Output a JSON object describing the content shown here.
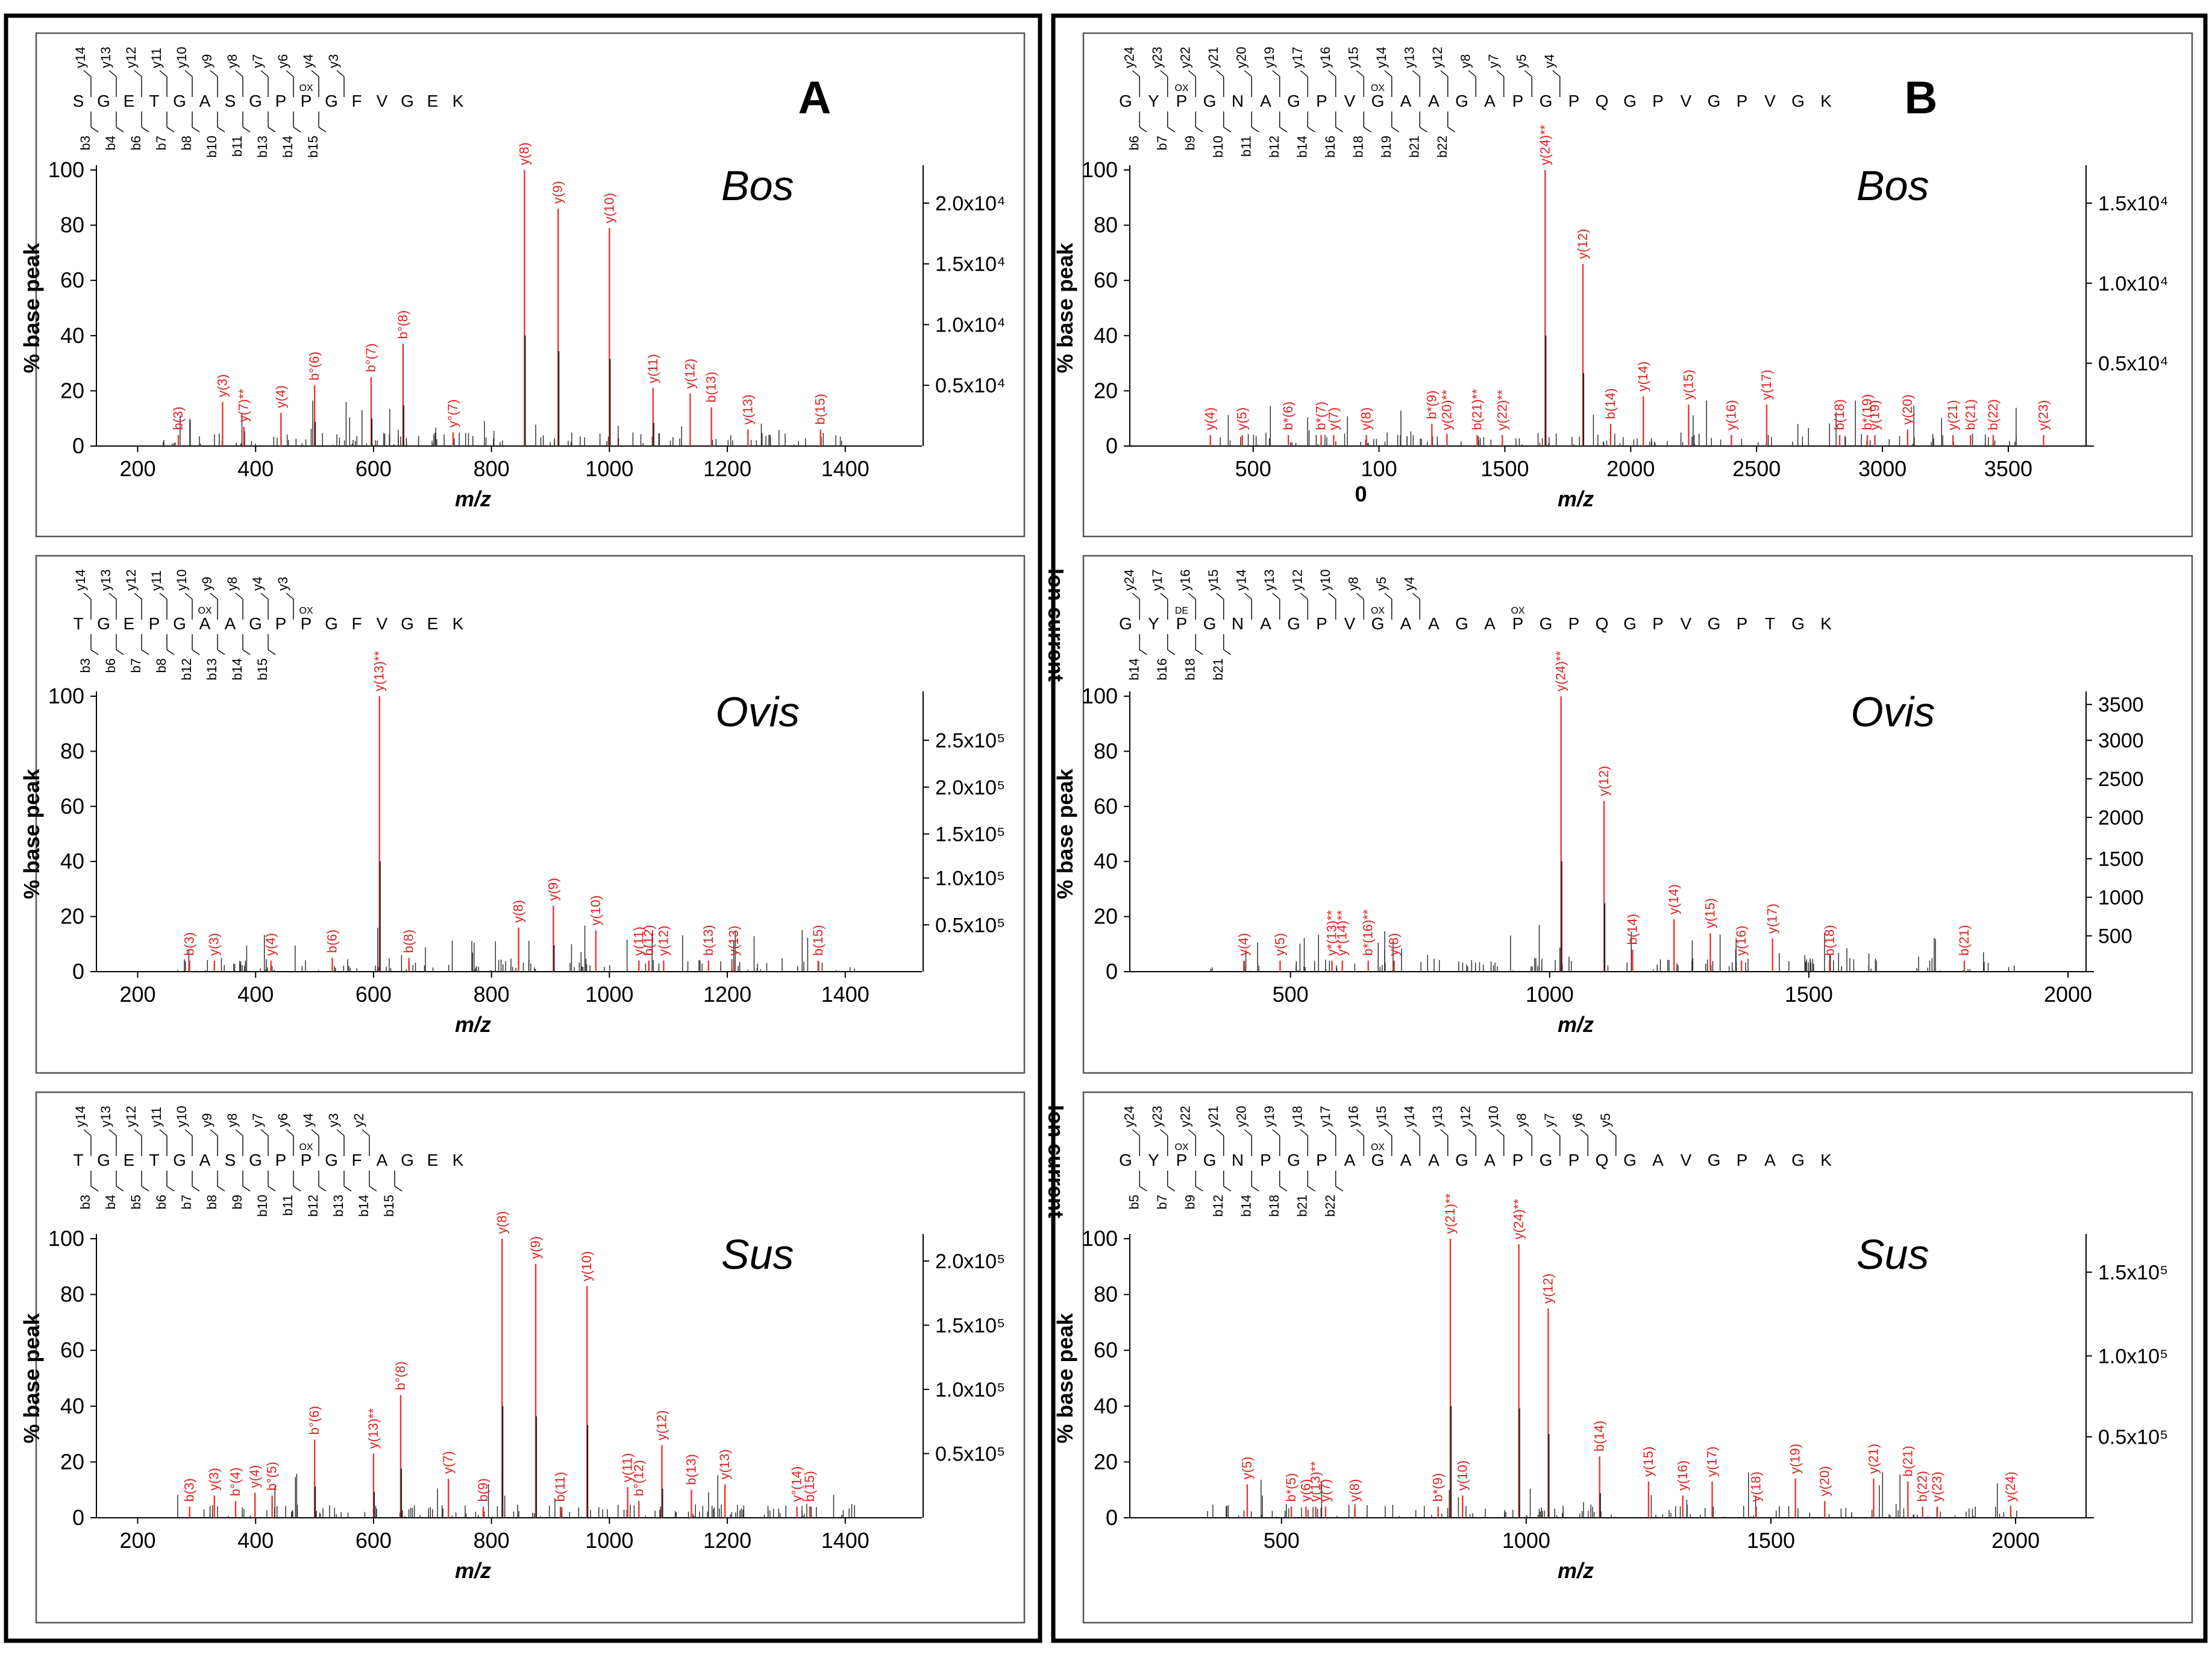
{
  "panels": {
    "A": "A",
    "B": "B"
  },
  "chart_data": [
    {
      "type": "bar",
      "column": "A",
      "row": 0,
      "species": "Bos",
      "ylabel": "% base peak",
      "xlabel": "m/z",
      "right_label": "",
      "xlim": [
        130,
        1530
      ],
      "ylim": [
        0,
        100
      ],
      "xticks": [
        {
          "v": 200,
          "t": "200"
        },
        {
          "v": 400,
          "t": "400"
        },
        {
          "v": 600,
          "t": "600"
        },
        {
          "v": 800,
          "t": "800"
        },
        {
          "v": 1000,
          "t": "1000"
        },
        {
          "v": 1200,
          "t": "1200"
        },
        {
          "v": 1400,
          "t": "1400"
        }
      ],
      "yticks": [
        0,
        20,
        40,
        60,
        80,
        100
      ],
      "rticks": [
        {
          "v": 88,
          "t": "2.0x10⁴"
        },
        {
          "v": 66,
          "t": "1.5x10⁴"
        },
        {
          "v": 44,
          "t": "1.0x10⁴"
        },
        {
          "v": 22,
          "t": "0.5x10⁴"
        }
      ],
      "sequence": "S G E T G A S G P P G F V G E K",
      "seq_top": [
        "y14",
        "y13",
        "y12",
        "y11",
        "y10",
        "y9",
        "y8",
        "y7",
        "y6",
        "y4",
        "y3"
      ],
      "seq_bottom": [
        "b3",
        "b4",
        "b6",
        "b7",
        "b8",
        "b10",
        "b11",
        "b13",
        "b14",
        "b15"
      ],
      "mods": [
        "OX"
      ],
      "peaks": [
        {
          "x": 269,
          "y": 4,
          "label": "b(3)"
        },
        {
          "x": 344,
          "y": 16,
          "label": "y(3)"
        },
        {
          "x": 380,
          "y": 7,
          "label": "y(7)**"
        },
        {
          "x": 443,
          "y": 12,
          "label": "y(4)"
        },
        {
          "x": 500,
          "y": 22,
          "label": "b°(6)"
        },
        {
          "x": 596,
          "y": 25,
          "label": "b°(7)"
        },
        {
          "x": 650,
          "y": 37,
          "label": "b°(8)"
        },
        {
          "x": 735,
          "y": 5,
          "label": "y°(7)"
        },
        {
          "x": 856,
          "y": 100,
          "label": "y(8)"
        },
        {
          "x": 913,
          "y": 86,
          "label": "y(9)"
        },
        {
          "x": 1000,
          "y": 79,
          "label": "y(10)"
        },
        {
          "x": 1074,
          "y": 21,
          "label": "y(11)"
        },
        {
          "x": 1137,
          "y": 19,
          "label": "y(12)"
        },
        {
          "x": 1173,
          "y": 14,
          "label": "b(13)"
        },
        {
          "x": 1235,
          "y": 6,
          "label": "y(13)"
        },
        {
          "x": 1358,
          "y": 6,
          "label": "b(15)"
        }
      ]
    },
    {
      "type": "bar",
      "column": "A",
      "row": 1,
      "species": "Ovis",
      "ylabel": "% base peak",
      "xlabel": "m/z",
      "right_label": "Ion current",
      "xlim": [
        130,
        1530
      ],
      "ylim": [
        0,
        100
      ],
      "xticks": [
        {
          "v": 200,
          "t": "200"
        },
        {
          "v": 400,
          "t": "400"
        },
        {
          "v": 600,
          "t": "600"
        },
        {
          "v": 800,
          "t": "800"
        },
        {
          "v": 1000,
          "t": "1000"
        },
        {
          "v": 1200,
          "t": "1200"
        },
        {
          "v": 1400,
          "t": "1400"
        }
      ],
      "yticks": [
        0,
        20,
        40,
        60,
        80,
        100
      ],
      "rticks": [
        {
          "v": 84,
          "t": "2.5x10⁵"
        },
        {
          "v": 67,
          "t": "2.0x10⁵"
        },
        {
          "v": 50,
          "t": "1.5x10⁵"
        },
        {
          "v": 34,
          "t": "1.0x10⁵"
        },
        {
          "v": 17,
          "t": "0.5x10⁵"
        }
      ],
      "sequence": "T G E P G A A G P P G F V G E K",
      "seq_top": [
        "y14",
        "y13",
        "y12",
        "y11",
        "y10",
        "y9",
        "y8",
        "y4",
        "y3"
      ],
      "seq_bottom": [
        "b3",
        "b6",
        "b7",
        "b8",
        "b12",
        "b13",
        "b14",
        "b15"
      ],
      "mods": [
        "OX",
        "OX"
      ],
      "peaks": [
        {
          "x": 288,
          "y": 4,
          "label": "b(3)"
        },
        {
          "x": 330,
          "y": 4,
          "label": "y(3)"
        },
        {
          "x": 426,
          "y": 4,
          "label": "y(4)"
        },
        {
          "x": 530,
          "y": 5,
          "label": "b(6)"
        },
        {
          "x": 610,
          "y": 100,
          "label": "y(13)**"
        },
        {
          "x": 660,
          "y": 5,
          "label": "b(8)"
        },
        {
          "x": 846,
          "y": 16,
          "label": "y(8)"
        },
        {
          "x": 905,
          "y": 24,
          "label": "y(9)"
        },
        {
          "x": 977,
          "y": 15,
          "label": "y(10)"
        },
        {
          "x": 1050,
          "y": 4,
          "label": "y(11)"
        },
        {
          "x": 1067,
          "y": 4,
          "label": "b(12)"
        },
        {
          "x": 1092,
          "y": 4,
          "label": "y(12)"
        },
        {
          "x": 1168,
          "y": 4,
          "label": "b(13)"
        },
        {
          "x": 1211,
          "y": 4,
          "label": "y(13)"
        },
        {
          "x": 1354,
          "y": 4,
          "label": "b(15)"
        }
      ]
    },
    {
      "type": "bar",
      "column": "A",
      "row": 2,
      "species": "Sus",
      "ylabel": "% base peak",
      "xlabel": "m/z",
      "right_label": "Ion current",
      "xlim": [
        130,
        1530
      ],
      "ylim": [
        0,
        100
      ],
      "xticks": [
        {
          "v": 200,
          "t": "200"
        },
        {
          "v": 400,
          "t": "400"
        },
        {
          "v": 600,
          "t": "600"
        },
        {
          "v": 800,
          "t": "800"
        },
        {
          "v": 1000,
          "t": "1000"
        },
        {
          "v": 1200,
          "t": "1200"
        },
        {
          "v": 1400,
          "t": "1400"
        }
      ],
      "yticks": [
        0,
        20,
        40,
        60,
        80,
        100
      ],
      "rticks": [
        {
          "v": 92,
          "t": "2.0x10⁵"
        },
        {
          "v": 69,
          "t": "1.5x10⁵"
        },
        {
          "v": 46,
          "t": "1.0x10⁵"
        },
        {
          "v": 23,
          "t": "0.5x10⁵"
        }
      ],
      "sequence": "T G E T G A S G P P G F A G E K",
      "seq_top": [
        "y14",
        "y13",
        "y12",
        "y11",
        "y10",
        "y9",
        "y8",
        "y7",
        "y6",
        "y4",
        "y3",
        "y2"
      ],
      "seq_bottom": [
        "b3",
        "b4",
        "b5",
        "b6",
        "b7",
        "b8",
        "b9",
        "b10",
        "b11",
        "b12",
        "b13",
        "b14",
        "b15"
      ],
      "mods": [
        "OX"
      ],
      "peaks": [
        {
          "x": 288,
          "y": 4,
          "label": "b(3)"
        },
        {
          "x": 330,
          "y": 8,
          "label": "y(3)"
        },
        {
          "x": 366,
          "y": 6,
          "label": "b°(4)"
        },
        {
          "x": 399,
          "y": 9,
          "label": "y(4)"
        },
        {
          "x": 428,
          "y": 8,
          "label": "b°(5)"
        },
        {
          "x": 500,
          "y": 28,
          "label": "b°(6)"
        },
        {
          "x": 600,
          "y": 23,
          "label": "y(13)**"
        },
        {
          "x": 646,
          "y": 44,
          "label": "b°(8)"
        },
        {
          "x": 727,
          "y": 14,
          "label": "y(7)"
        },
        {
          "x": 786,
          "y": 4,
          "label": "b(9)"
        },
        {
          "x": 818,
          "y": 100,
          "label": "y(8)"
        },
        {
          "x": 875,
          "y": 91,
          "label": "y(9)"
        },
        {
          "x": 962,
          "y": 83,
          "label": "y(10)"
        },
        {
          "x": 917,
          "y": 4,
          "label": "b(11)"
        },
        {
          "x": 1031,
          "y": 11,
          "label": "y(11)"
        },
        {
          "x": 1050,
          "y": 6,
          "label": "b°(12)"
        },
        {
          "x": 1089,
          "y": 26,
          "label": "y(12)"
        },
        {
          "x": 1139,
          "y": 10,
          "label": "b(13)"
        },
        {
          "x": 1196,
          "y": 12,
          "label": "y(13)"
        },
        {
          "x": 1318,
          "y": 4,
          "label": "y°(14)"
        },
        {
          "x": 1340,
          "y": 4,
          "label": "b(15)"
        }
      ]
    },
    {
      "type": "bar",
      "column": "B",
      "row": 0,
      "species": "Bos",
      "ylabel": "% base peak",
      "xlabel": "m/z",
      "right_label": "",
      "xlim": [
        10,
        3840
      ],
      "ylim": [
        0,
        100
      ],
      "xticks": [
        {
          "v": 500,
          "t": "500"
        },
        {
          "v": 1000,
          "t": "100"
        },
        {
          "v": 1500,
          "t": "1500"
        },
        {
          "v": 2000,
          "t": "2000"
        },
        {
          "v": 2500,
          "t": "2500"
        },
        {
          "v": 3000,
          "t": "3000"
        },
        {
          "v": 3500,
          "t": "3500"
        }
      ],
      "extra_tick_text": "0",
      "yticks": [
        0,
        20,
        40,
        60,
        80,
        100
      ],
      "rticks": [
        {
          "v": 88,
          "t": "1.5x10⁴"
        },
        {
          "v": 59,
          "t": "1.0x10⁴"
        },
        {
          "v": 30,
          "t": "0.5x10⁴"
        }
      ],
      "sequence": "G Y P G N A G P V G A A G A P G P Q G P V G P V G K",
      "seq_top": [
        "y24",
        "y23",
        "y22",
        "y21",
        "y20",
        "y19",
        "y17",
        "y16",
        "y15",
        "y14",
        "y13",
        "y12",
        "y8",
        "y7",
        "y5",
        "y4"
      ],
      "seq_bottom": [
        "b6",
        "b7",
        "b9",
        "b10",
        "b11",
        "b12",
        "b14",
        "b16",
        "b18",
        "b19",
        "b21",
        "b22"
      ],
      "mods": [
        "OX",
        "OX"
      ],
      "peaks": [
        {
          "x": 330,
          "y": 4,
          "label": "y(4)"
        },
        {
          "x": 457,
          "y": 4,
          "label": "y(5)"
        },
        {
          "x": 640,
          "y": 4,
          "label": "b*(6)"
        },
        {
          "x": 770,
          "y": 4,
          "label": "b*(7)"
        },
        {
          "x": 820,
          "y": 4,
          "label": "y(7)"
        },
        {
          "x": 950,
          "y": 4,
          "label": "y(8)"
        },
        {
          "x": 1210,
          "y": 8,
          "label": "b*(9)"
        },
        {
          "x": 1270,
          "y": 4,
          "label": "y(20)**"
        },
        {
          "x": 1390,
          "y": 4,
          "label": "b(21)**"
        },
        {
          "x": 1490,
          "y": 4,
          "label": "y(22)**"
        },
        {
          "x": 1660,
          "y": 100,
          "label": "y(24)**"
        },
        {
          "x": 1810,
          "y": 66,
          "label": "y(12)"
        },
        {
          "x": 1920,
          "y": 8,
          "label": "b(14)"
        },
        {
          "x": 2050,
          "y": 18,
          "label": "y(14)"
        },
        {
          "x": 2230,
          "y": 15,
          "label": "y(15)"
        },
        {
          "x": 2400,
          "y": 4,
          "label": "y(16)"
        },
        {
          "x": 2540,
          "y": 15,
          "label": "y(17)"
        },
        {
          "x": 2830,
          "y": 4,
          "label": "b(18)"
        },
        {
          "x": 2940,
          "y": 4,
          "label": "b*(19)"
        },
        {
          "x": 2970,
          "y": 4,
          "label": "y(19)"
        },
        {
          "x": 3100,
          "y": 6,
          "label": "y(20)"
        },
        {
          "x": 3280,
          "y": 4,
          "label": "y(21)"
        },
        {
          "x": 3350,
          "y": 4,
          "label": "b(21)"
        },
        {
          "x": 3440,
          "y": 4,
          "label": "b(22)"
        },
        {
          "x": 3640,
          "y": 4,
          "label": "y(23)"
        }
      ]
    },
    {
      "type": "bar",
      "column": "B",
      "row": 1,
      "species": "Ovis",
      "ylabel": "% base peak",
      "xlabel": "m/z",
      "right_label": "Ion current",
      "xlim": [
        190,
        2050
      ],
      "ylim": [
        0,
        100
      ],
      "xticks": [
        {
          "v": 500,
          "t": "500"
        },
        {
          "v": 1000,
          "t": "1000"
        },
        {
          "v": 1500,
          "t": "1500"
        },
        {
          "v": 2000,
          "t": "2000"
        }
      ],
      "yticks": [
        0,
        20,
        40,
        60,
        80,
        100
      ],
      "rticks": [
        {
          "v": 97,
          "t": "3500"
        },
        {
          "v": 84,
          "t": "3000"
        },
        {
          "v": 70,
          "t": "2500"
        },
        {
          "v": 56,
          "t": "2000"
        },
        {
          "v": 41,
          "t": "1500"
        },
        {
          "v": 27,
          "t": "1000"
        },
        {
          "v": 13,
          "t": "500"
        }
      ],
      "sequence": "G Y P G N A G P V G A A G A P G P Q G P V G P T G K",
      "seq_top": [
        "y24",
        "y17",
        "y16",
        "y15",
        "y14",
        "y13",
        "y12",
        "y10",
        "y8",
        "y5",
        "y4"
      ],
      "seq_bottom": [
        "b14",
        "b16",
        "b18",
        "b21"
      ],
      "mods": [
        "DE",
        "OX",
        "OX"
      ],
      "peaks": [
        {
          "x": 410,
          "y": 4,
          "label": "y(4)"
        },
        {
          "x": 480,
          "y": 4,
          "label": "y(5)"
        },
        {
          "x": 580,
          "y": 4,
          "label": "y*(13)**"
        },
        {
          "x": 600,
          "y": 4,
          "label": "y*(14)**"
        },
        {
          "x": 650,
          "y": 4,
          "label": "b*(16)**"
        },
        {
          "x": 700,
          "y": 4,
          "label": "y(8)"
        },
        {
          "x": 1022,
          "y": 100,
          "label": "y(24)**"
        },
        {
          "x": 1105,
          "y": 62,
          "label": "y(12)"
        },
        {
          "x": 1160,
          "y": 8,
          "label": "b(14)"
        },
        {
          "x": 1240,
          "y": 19,
          "label": "y(14)"
        },
        {
          "x": 1310,
          "y": 14,
          "label": "y(15)"
        },
        {
          "x": 1370,
          "y": 4,
          "label": "y(16)"
        },
        {
          "x": 1430,
          "y": 12,
          "label": "y(17)"
        },
        {
          "x": 1540,
          "y": 4,
          "label": "b(18)"
        },
        {
          "x": 1800,
          "y": 4,
          "label": "b(21)"
        }
      ]
    },
    {
      "type": "bar",
      "column": "B",
      "row": 2,
      "species": "Sus",
      "ylabel": "% base peak",
      "xlabel": "m/z",
      "right_label": "Ion current",
      "xlim": [
        190,
        2160
      ],
      "ylim": [
        0,
        100
      ],
      "xticks": [
        {
          "v": 500,
          "t": "500"
        },
        {
          "v": 1000,
          "t": "1000"
        },
        {
          "v": 1500,
          "t": "1500"
        },
        {
          "v": 2000,
          "t": "2000"
        }
      ],
      "yticks": [
        0,
        20,
        40,
        60,
        80,
        100
      ],
      "rticks": [
        {
          "v": 88,
          "t": "1.5x10⁵"
        },
        {
          "v": 58,
          "t": "1.0x10⁵"
        },
        {
          "v": 29,
          "t": "0.5x10⁵"
        }
      ],
      "sequence": "G Y P G N P G P A G A A G A P G P Q G A V G P A G K",
      "seq_top": [
        "y24",
        "y23",
        "y22",
        "y21",
        "y20",
        "y19",
        "y18",
        "y17",
        "y16",
        "y15",
        "y14",
        "y13",
        "y12",
        "y10",
        "y8",
        "y7",
        "y6",
        "y5"
      ],
      "seq_bottom": [
        "b5",
        "b7",
        "b9",
        "b12",
        "b14",
        "b18",
        "b21",
        "b22"
      ],
      "mods": [
        "OX",
        "OX"
      ],
      "peaks": [
        {
          "x": 430,
          "y": 12,
          "label": "y(5)"
        },
        {
          "x": 520,
          "y": 4,
          "label": "b*(5)"
        },
        {
          "x": 550,
          "y": 4,
          "label": "y(6)"
        },
        {
          "x": 570,
          "y": 4,
          "label": "y(13)**"
        },
        {
          "x": 590,
          "y": 4,
          "label": "y(7)"
        },
        {
          "x": 650,
          "y": 4,
          "label": "y(8)"
        },
        {
          "x": 820,
          "y": 4,
          "label": "b*(9)"
        },
        {
          "x": 845,
          "y": 100,
          "label": "y(21)**"
        },
        {
          "x": 870,
          "y": 8,
          "label": "y(10)"
        },
        {
          "x": 985,
          "y": 98,
          "label": "y(24)**"
        },
        {
          "x": 1045,
          "y": 75,
          "label": "y(12)"
        },
        {
          "x": 1150,
          "y": 22,
          "label": "b(14)"
        },
        {
          "x": 1250,
          "y": 13,
          "label": "y(15)"
        },
        {
          "x": 1320,
          "y": 8,
          "label": "y(16)"
        },
        {
          "x": 1380,
          "y": 13,
          "label": "y(17)"
        },
        {
          "x": 1470,
          "y": 4,
          "label": "y(18)"
        },
        {
          "x": 1550,
          "y": 14,
          "label": "y(19)"
        },
        {
          "x": 1610,
          "y": 6,
          "label": "y(20)"
        },
        {
          "x": 1710,
          "y": 14,
          "label": "y(21)"
        },
        {
          "x": 1780,
          "y": 13,
          "label": "b(21)"
        },
        {
          "x": 1810,
          "y": 4,
          "label": "b(22)"
        },
        {
          "x": 1840,
          "y": 4,
          "label": "y(23)"
        },
        {
          "x": 1990,
          "y": 4,
          "label": "y(24)"
        }
      ]
    }
  ]
}
